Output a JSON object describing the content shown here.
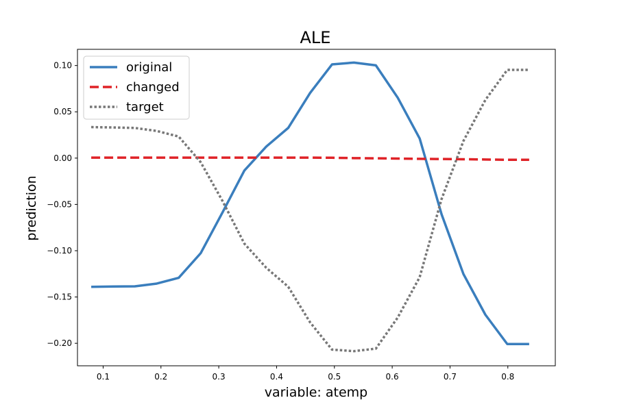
{
  "chart_data": {
    "type": "line",
    "title": "ALE",
    "xlabel": "variable: atemp",
    "ylabel": "prediction",
    "xlim": [
      0.0556,
      0.8821
    ],
    "ylim": [
      -0.2243,
      0.1175
    ],
    "xticks": [
      0.1,
      0.2,
      0.3,
      0.4,
      0.5,
      0.6,
      0.7,
      0.8
    ],
    "xtick_labels": [
      "0.1",
      "0.2",
      "0.3",
      "0.4",
      "0.5",
      "0.6",
      "0.7",
      "0.8"
    ],
    "yticks": [
      0.1,
      0.05,
      0.0,
      -0.05,
      -0.1,
      -0.15,
      -0.2
    ],
    "ytick_labels": [
      "0.10",
      "0.05",
      "0.00",
      "−0.05",
      "−0.10",
      "−0.15",
      "−0.20"
    ],
    "grid": false,
    "legend_position": "top-left",
    "x": [
      0.0794,
      0.1178,
      0.1549,
      0.1928,
      0.2307,
      0.2686,
      0.3065,
      0.3443,
      0.3822,
      0.4201,
      0.458,
      0.4959,
      0.5338,
      0.5717,
      0.6096,
      0.6475,
      0.6854,
      0.7232,
      0.7611,
      0.799,
      0.8369
    ],
    "series": [
      {
        "name": "original",
        "color": "#3a7ebd",
        "style": "solid",
        "values": [
          -0.139,
          -0.1387,
          -0.1385,
          -0.1355,
          -0.1293,
          -0.1028,
          -0.0586,
          -0.0134,
          0.0125,
          0.0326,
          0.0704,
          0.1012,
          0.1032,
          0.1002,
          0.0652,
          0.0212,
          -0.0607,
          -0.1252,
          -0.1691,
          -0.2008,
          -0.2008
        ]
      },
      {
        "name": "changed",
        "color": "#df2227",
        "style": "dashed",
        "values": [
          0.0005,
          0.0005,
          0.0005,
          0.0005,
          0.0005,
          0.0005,
          0.0005,
          0.0005,
          0.0005,
          0.0005,
          0.0005,
          0.0004,
          0.0,
          -0.0002,
          -0.0005,
          -0.0008,
          -0.001,
          -0.0012,
          -0.0015,
          -0.0018,
          -0.0018
        ]
      },
      {
        "name": "target",
        "color": "#777777",
        "style": "dotted",
        "values": [
          0.0335,
          0.0331,
          0.0326,
          0.0293,
          0.0233,
          -0.0043,
          -0.0463,
          -0.0924,
          -0.1185,
          -0.1389,
          -0.1774,
          -0.2068,
          -0.2085,
          -0.2058,
          -0.1721,
          -0.1286,
          -0.0442,
          0.0185,
          0.0628,
          0.0953,
          0.0953
        ]
      }
    ]
  }
}
